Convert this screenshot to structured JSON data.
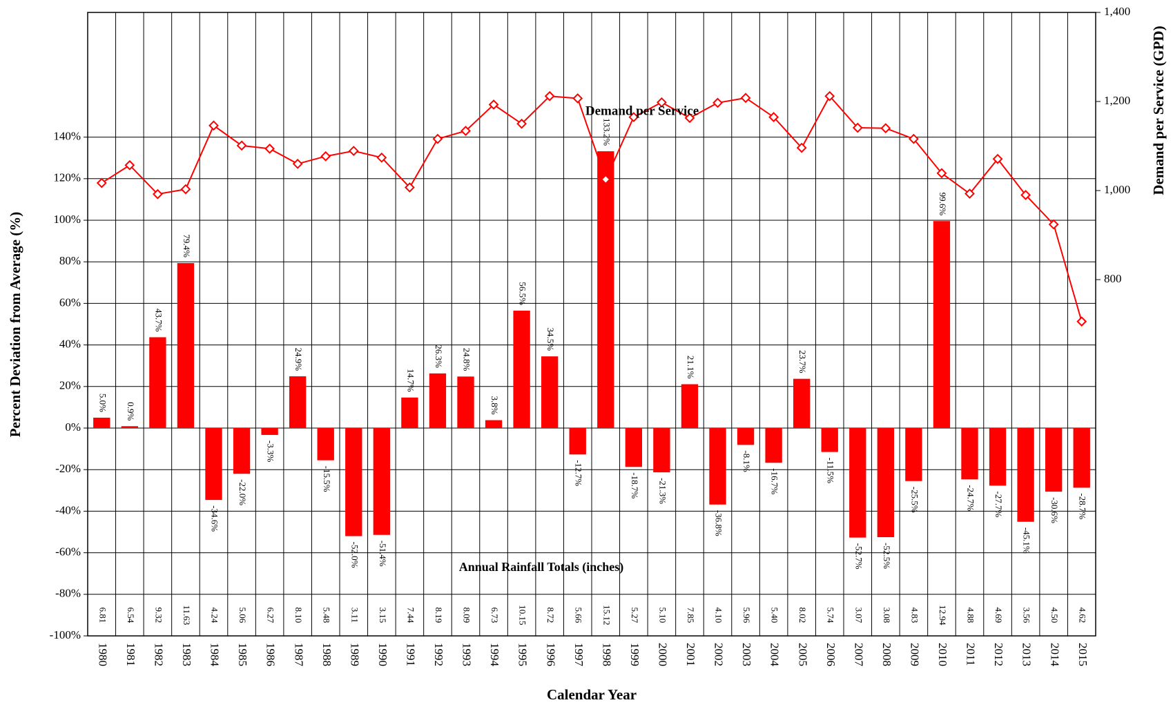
{
  "chart_data": {
    "type": "bar_line",
    "x_label": "Calendar Year",
    "y_label": "Percent Deviation from Average (%)",
    "y2_label": "Demand per Service (GPD)",
    "annotations": [
      "Demand per Service",
      "Annual Rainfall Totals (inches)"
    ],
    "categories": [
      "1980",
      "1981",
      "1982",
      "1983",
      "1984",
      "1985",
      "1986",
      "1987",
      "1988",
      "1989",
      "1990",
      "1991",
      "1992",
      "1993",
      "1994",
      "1995",
      "1996",
      "1997",
      "1998",
      "1999",
      "2000",
      "2001",
      "2002",
      "2003",
      "2004",
      "2005",
      "2006",
      "2007",
      "2008",
      "2009",
      "2010",
      "2011",
      "2012",
      "2013",
      "2014",
      "2015"
    ],
    "series": [
      {
        "name": "Percent Deviation from Average",
        "color": "#ff0000",
        "values": [
          5.0,
          0.9,
          43.7,
          79.4,
          -34.6,
          -22.0,
          -3.3,
          24.9,
          -15.5,
          -52.0,
          -51.4,
          14.7,
          26.3,
          24.8,
          3.8,
          56.5,
          34.5,
          -12.7,
          133.2,
          -18.7,
          -21.3,
          21.1,
          -36.8,
          -8.1,
          -16.7,
          23.7,
          -11.5,
          -52.7,
          -52.5,
          -25.5,
          99.6,
          -24.7,
          -27.7,
          -45.1,
          -30.6,
          -28.7
        ],
        "value_labels": [
          "5.0%",
          "0.9%",
          "43.7%",
          "79.4%",
          "-34.6%",
          "-22.0%",
          "-3.3%",
          "24.9%",
          "-15.5%",
          "-52.0%",
          "-51.4%",
          "14.7%",
          "26.3%",
          "24.8%",
          "3.8%",
          "56.5%",
          "34.5%",
          "-12.7%",
          "133.2%",
          "-18.7%",
          "-21.3%",
          "21.1%",
          "-36.8%",
          "-8.1%",
          "-16.7%",
          "23.7%",
          "-11.5%",
          "-52.7%",
          "-52.5%",
          "-25.5%",
          "99.6%",
          "-24.7%",
          "-27.7%",
          "-45.1%",
          "-30.6%",
          "-28.7%"
        ]
      },
      {
        "name": "Demand per Service",
        "color": "#ff0000",
        "axis": "y2",
        "values": [
          1017,
          1057,
          992,
          1003,
          1146,
          1101,
          1094,
          1060,
          1077,
          1089,
          1074,
          1007,
          1116,
          1134,
          1193,
          1150,
          1212,
          1207,
          1025,
          1165,
          1198,
          1163,
          1197,
          1208,
          1165,
          1096,
          1212,
          1141,
          1140,
          1116,
          1039,
          993,
          1071,
          990,
          924,
          706
        ]
      }
    ],
    "rainfall_labels": [
      "6.81",
      "6.54",
      "9.32",
      "11.63",
      "4.24",
      "5.06",
      "6.27",
      "8.10",
      "5.48",
      "3.11",
      "3.15",
      "7.44",
      "8.19",
      "8.09",
      "6.73",
      "10.15",
      "8.72",
      "5.66",
      "15.12",
      "5.27",
      "5.10",
      "7.85",
      "4.10",
      "5.96",
      "5.40",
      "8.02",
      "5.74",
      "3.07",
      "3.08",
      "4.83",
      "12.94",
      "4.88",
      "4.69",
      "3.56",
      "4.50",
      "4.62"
    ],
    "ylim": [
      -100,
      200
    ],
    "yticks": [
      {
        "value": -100,
        "label": "-100%"
      },
      {
        "value": -80,
        "label": "-80%"
      },
      {
        "value": -60,
        "label": "-60%"
      },
      {
        "value": -40,
        "label": "-40%"
      },
      {
        "value": -20,
        "label": "-20%"
      },
      {
        "value": 0,
        "label": "0%"
      },
      {
        "value": 20,
        "label": "20%"
      },
      {
        "value": 40,
        "label": "40%"
      },
      {
        "value": 60,
        "label": "60%"
      },
      {
        "value": 80,
        "label": "80%"
      },
      {
        "value": 100,
        "label": "100%"
      },
      {
        "value": 120,
        "label": "120%"
      },
      {
        "value": 140,
        "label": "140%"
      }
    ],
    "y2lim": [
      0,
      1400
    ],
    "y2ticks": [
      800,
      {
        "value": 1000,
        "label": "1,000"
      },
      {
        "value": 1200,
        "label": "1,200"
      },
      {
        "value": 1400,
        "label": "1,400"
      }
    ],
    "grid": true
  }
}
